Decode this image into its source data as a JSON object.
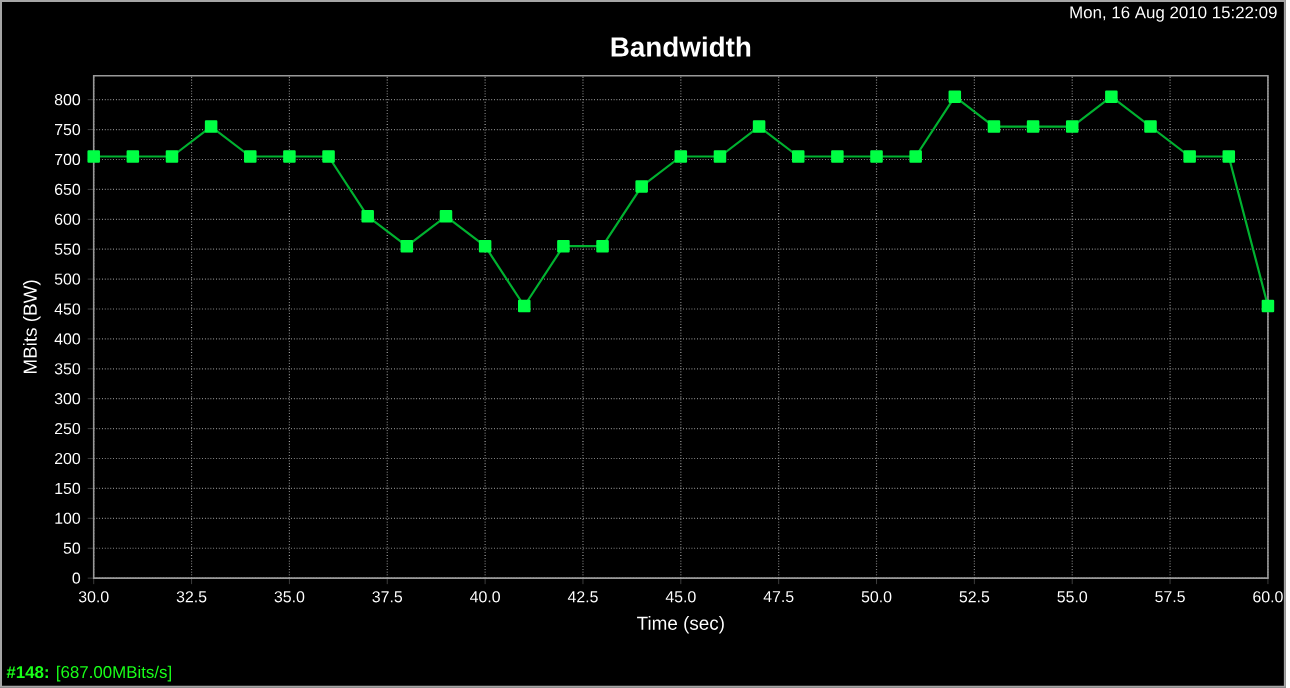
{
  "chart_data": {
    "type": "line",
    "title": "Bandwidth",
    "xlabel": "Time (sec)",
    "ylabel": "MBits (BW)",
    "annotations": [
      "Mon, 16 Aug 2010 15:22:09",
      "**#148:** [687.00MBits/s]"
    ],
    "x": [
      30,
      31,
      32,
      33,
      34,
      35,
      36,
      37,
      38,
      39,
      40,
      41,
      42,
      43,
      44,
      45,
      46,
      47,
      48,
      49,
      50,
      51,
      52,
      53,
      54,
      55,
      56,
      57,
      58,
      59,
      60
    ],
    "series": [
      {
        "color": "#00ff44",
        "values": [
          705,
          705,
          705,
          755,
          705,
          705,
          705,
          605,
          555,
          605,
          555,
          455,
          555,
          555,
          655,
          705,
          705,
          755,
          705,
          705,
          705,
          705,
          805,
          755,
          755,
          755,
          805,
          755,
          705,
          705,
          455
        ]
      }
    ],
    "xlim": [
      30,
      60
    ],
    "ylim": [
      0,
      840
    ],
    "xticks": [
      {
        "value": 30,
        "label": "30.0"
      },
      {
        "value": 32.5,
        "label": "32.5"
      },
      {
        "value": 35,
        "label": "35.0"
      },
      {
        "value": 37.5,
        "label": "37.5"
      },
      {
        "value": 40,
        "label": "40.0"
      },
      {
        "value": 42.5,
        "label": "42.5"
      },
      {
        "value": 45,
        "label": "45.0"
      },
      {
        "value": 47.5,
        "label": "47.5"
      },
      {
        "value": 50,
        "label": "50.0"
      },
      {
        "value": 52.5,
        "label": "52.5"
      },
      {
        "value": 55,
        "label": "55.0"
      },
      {
        "value": 57.5,
        "label": "57.5"
      },
      {
        "value": 60,
        "label": "60.0"
      }
    ],
    "yticks": [
      0,
      50,
      100,
      150,
      200,
      250,
      300,
      350,
      400,
      450,
      500,
      550,
      600,
      650,
      700,
      750,
      800
    ],
    "grid": true,
    "marker": "square",
    "line_style": "solid"
  }
}
